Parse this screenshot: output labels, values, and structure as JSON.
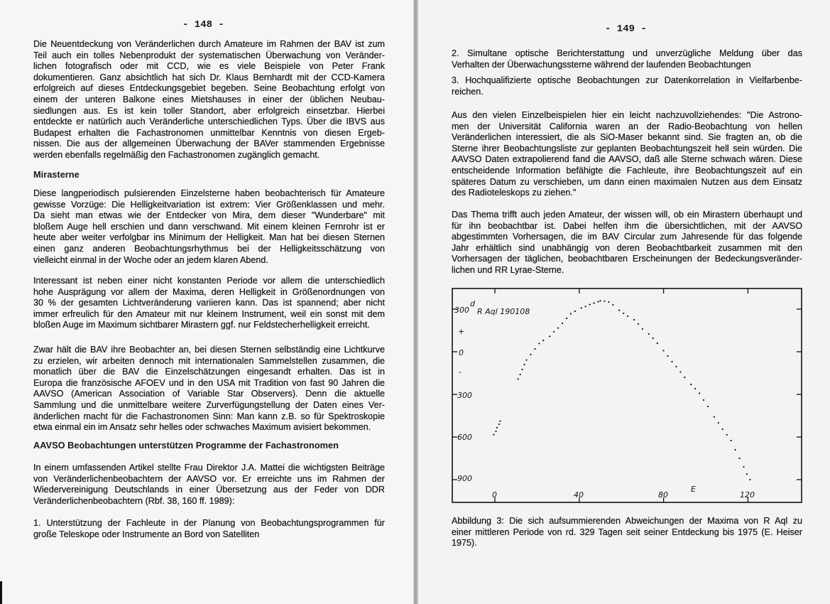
{
  "left_page": {
    "page_number": "- 148 -",
    "paragraphs": [
      [
        "Die Neuentdeckung von Veränderlichen durch Amateure im Rahmen der BAV ist zum",
        "Teil auch ein tolles Nebenprodukt der systematischen Überwachung von Veränder-",
        "lichen fotografisch oder mit CCD, wie es viele Beispiele von Peter Frank",
        "dokumentieren. Ganz absichtlich hat sich Dr. Klaus Bernhardt mit der CCD-Kamera",
        "erfolgreich auf dieses Entdeckungsgebiet begeben. Seine Beobachtung erfolgt von",
        "einem der unteren Balkone eines Mietshauses in einer der üblichen Neubau-",
        "siedlungen aus. Es ist kein toller Standort, aber erfolgreich einsetzbar. Hierbei",
        "entdeckte er natürlich auch Veränderliche unterschiedlichen Typs. Über die IBVS aus",
        "Budapest erhalten die Fachastronomen unmittelbar Kenntnis von diesen Ergeb-",
        "nissen. Die aus der  allgemeinen Überwachung der BAVer stammenden Ergebnisse",
        "werden ebenfalls regelmäßig den Fachastronomen zugänglich gemacht."
      ],
      [
        "Diese langperiodisch pulsierenden Einzelsterne haben beobachterisch für Amateure",
        "gewisse Vorzüge: Die Helligkeitvariation ist extrem: Vier Größenklassen und mehr.",
        "Da sieht man etwas wie der Entdecker von Mira, dem dieser \"Wunderbare\" mit",
        "bloßem Auge hell erschien und dann verschwand. Mit einem kleinen Fernrohr ist er",
        "heute aber weiter verfolgbar ins Minimum der Helligkeit. Man hat bei diesen Sternen",
        "einen ganz anderen Beobachtungsrhythmus bei der Helligkeitsschätzung von",
        "vielleicht einmal in der Woche oder an jedem klaren Abend."
      ],
      [
        "Interessant ist neben einer nicht konstanten Periode vor allem die unterschiedlich",
        "hohe Ausprägung vor allem der Maxima, deren Helligkeit in Größenordnungen von",
        "30 % der gesamten Lichtveränderung variieren kann. Das ist spannend; aber nicht",
        "immer erfreulich für den Amateur mit nur kleinem Instrument, weil ein sonst mit dem",
        "bloßen Auge im Maximum sichtbarer Mirastern ggf. nur Feldstecherhelligkeit erreicht."
      ],
      [
        "Zwar hält die BAV ihre Beobachter an, bei diesen Sternen selbständig eine Lichtkurve",
        "zu erzielen, wir arbeiten dennoch mit internationalen Sammelstellen zusammen, die",
        "monatlich über die BAV die Einzelschätzungen eingesandt erhalten. Das ist in",
        "Europa die französische AFOEV und in den USA mit Tradition von fast 90 Jahren die",
        "AAVSO (American Association of Variable Star Observers). Denn die aktuelle",
        "Sammlung und die unmittelbare weitere Zurverfügungstellung der Daten eines Ver-",
        "änderlichen macht für die Fachastronomen Sinn: Man kann z.B. so für Spektroskopie",
        "etwa einmal ein im Ansatz sehr helles oder schwaches Maximum avisiert bekommen."
      ],
      [
        "In einem umfassenden Artikel stellte Frau Direktor J.A. Mattei die wichtigsten Beiträge",
        "von Veränderlichenbeobachtern der AAVSO vor. Er erreichte uns im Rahmen der",
        "Wiedervereinigung Deutschlands in einer Übersetzung aus der Feder von DDR",
        "Veränderlichenbeobachtern (Rbf. 38, 160 ff. 1989):"
      ],
      [
        "1. Unterstützung der Fachleute in der Planung von Beobachtungsprogrammen für",
        "große Teleskope oder Instrumente an Bord von Satelliten"
      ]
    ],
    "heading_mirasterne": "Mirasterne",
    "heading_aavso": "AAVSO Beobachtungen unterstützen Programme der Fachastronomen"
  },
  "right_page": {
    "page_number": "- 149 -",
    "paragraphs": [
      [
        "2. Simultane optische Berichterstattung und unverzügliche Meldung über das",
        "Verhalten der Überwachungssterne während der laufenden Beobachtungen"
      ],
      [
        "3. Hochqualifizierte optische Beobachtungen zur Datenkorrelation in Vielfarbenbe-",
        "reichen."
      ],
      [
        "Aus den vielen Einzelbeispielen hier ein leicht nachzuvollziehendes: \"Die Astrono-",
        "men der Universität California waren an der Radio-Beobachtung von hellen",
        "Veränderlichen interessiert, die als SiO-Maser bekannt sind. Sie fragten an, ob die",
        "Sterne ihrer Beobachtungsliste zur geplanten Beobachtungszeit hell sein würden. Die",
        "AAVSO Daten extrapolierend fand die AAVSO, daß alle Sterne schwach wären. Diese",
        "entscheidende Information befähigte die Fachleute, ihre Beobachtungszeit auf ein",
        "späteres Datum zu verschieben, um dann einen maximalen Nutzen aus dem Einsatz",
        "des Radioteleskops zu ziehen.\""
      ],
      [
        "Das Thema trifft auch jeden Amateur, der wissen will, ob ein Mirastern überhaupt und",
        "für ihn beobachtbar ist. Dabei helfen ihm die übersichtlichen, mit der AAVSO",
        "abgestimmten Vorhersagen, die im BAV Circular zum Jahresende für das folgende",
        "Jahr erhältlich sind unabhängig von deren Beobachtbarkeit zusammen mit den",
        "Vorhersagen der täglichen, beobachtbaren Erscheinungen der Bedeckungsveränder-",
        "lichen und RR Lyrae-Sterne."
      ]
    ],
    "caption": [
      "Abbildung 3: Die sich aufsummierenden Abweichungen der Maxima von R Aql zu",
      "einer mittleren Periode von rd. 329 Tagen seit seiner Entdeckung bis 1975 (E. Heiser",
      "1975)."
    ]
  },
  "chart_data": {
    "type": "scatter",
    "title": "R Aql 190108",
    "xlabel": "E",
    "ylabel_unit": "d",
    "xlim": [
      -20,
      145
    ],
    "ylim": [
      -1000,
      450
    ],
    "x_ticks": [
      {
        "value": 0,
        "label": "0"
      },
      {
        "value": 40,
        "label": "40"
      },
      {
        "value": 80,
        "label": "80"
      },
      {
        "value": 120,
        "label": "120"
      }
    ],
    "y_ticks": [
      {
        "value": 300,
        "label": "300"
      },
      {
        "value": 0,
        "label": "0"
      },
      {
        "value": -300,
        "label": "300"
      },
      {
        "value": -600,
        "label": "600"
      },
      {
        "value": -900,
        "label": "900"
      }
    ],
    "sign_labels": {
      "plus": "+",
      "minus": "-"
    },
    "grid": false,
    "points": [
      [
        -0.5,
        -583
      ],
      [
        0.5,
        -560
      ],
      [
        1,
        -535
      ],
      [
        2,
        -510
      ],
      [
        2.5,
        -488
      ],
      [
        11,
        -192
      ],
      [
        12,
        -160
      ],
      [
        13,
        -125
      ],
      [
        14,
        -90
      ],
      [
        15,
        -58
      ],
      [
        17,
        -20
      ],
      [
        19,
        20
      ],
      [
        21,
        58
      ],
      [
        23,
        80
      ],
      [
        26,
        108
      ],
      [
        28,
        140
      ],
      [
        30,
        167
      ],
      [
        32,
        200
      ],
      [
        34,
        235
      ],
      [
        36,
        267
      ],
      [
        38,
        285
      ],
      [
        41,
        308
      ],
      [
        43,
        318
      ],
      [
        45,
        332
      ],
      [
        47,
        342
      ],
      [
        49,
        352
      ],
      [
        50,
        358
      ],
      [
        52,
        356
      ],
      [
        54,
        350
      ],
      [
        56,
        330
      ],
      [
        59,
        292
      ],
      [
        61,
        270
      ],
      [
        63,
        250
      ],
      [
        66,
        225
      ],
      [
        68,
        195
      ],
      [
        70,
        160
      ],
      [
        73,
        125
      ],
      [
        75,
        95
      ],
      [
        77,
        60
      ],
      [
        80,
        8
      ],
      [
        82,
        -30
      ],
      [
        84,
        -70
      ],
      [
        86,
        -105
      ],
      [
        88,
        -142
      ],
      [
        90,
        -180
      ],
      [
        93,
        -230
      ],
      [
        95,
        -260
      ],
      [
        97,
        -292
      ],
      [
        99,
        -340
      ],
      [
        101,
        -385
      ],
      [
        104,
        -458
      ],
      [
        106,
        -500
      ],
      [
        108,
        -545
      ],
      [
        110,
        -585
      ],
      [
        112,
        -625
      ],
      [
        114,
        -690
      ],
      [
        116,
        -750
      ],
      [
        118,
        -810
      ],
      [
        119.5,
        -860
      ],
      [
        121,
        -900
      ]
    ]
  }
}
